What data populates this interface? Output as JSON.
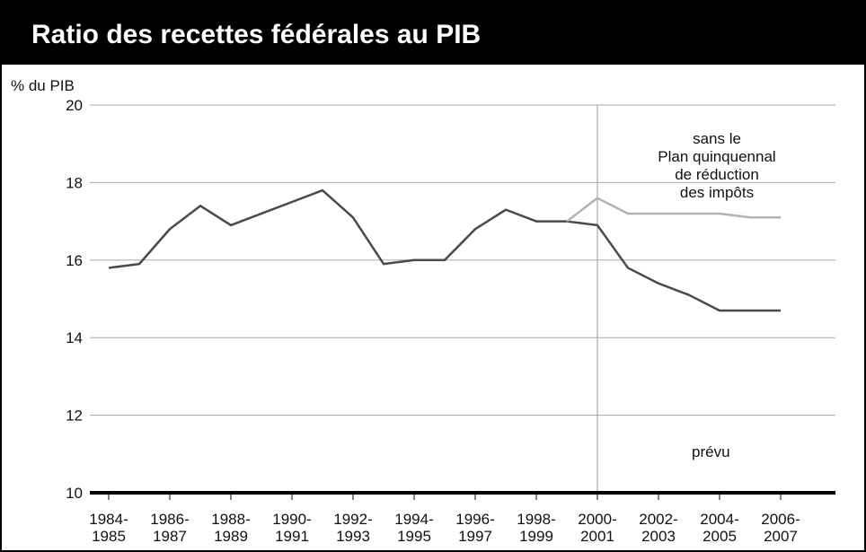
{
  "chart_data": {
    "type": "line",
    "title": "Ratio des recettes fédérales au PIB",
    "y_label": "% du PIB",
    "categories": [
      "1984-\n1985",
      null,
      "1986-\n1987",
      null,
      "1988-\n1989",
      null,
      "1990-\n1991",
      null,
      "1992-\n1993",
      null,
      "1994-\n1995",
      null,
      "1996-\n1997",
      null,
      "1998-\n1999",
      null,
      "2000-\n2001",
      null,
      "2002-\n2003",
      null,
      "2004-\n2005",
      null,
      "2006-\n2007"
    ],
    "series": [
      {
        "color": "#4a4a4a",
        "values": [
          15.8,
          15.9,
          16.8,
          17.4,
          16.9,
          17.2,
          17.5,
          17.8,
          17.1,
          15.9,
          16.0,
          16.0,
          16.8,
          17.3,
          17.0,
          17.0,
          16.9,
          15.8,
          15.4,
          15.1,
          14.7,
          14.7,
          14.7
        ]
      },
      {
        "name": "sans le\nPlan quinquennal\nde réduction\ndes impôts",
        "color": "#b3b3b3",
        "values": [
          null,
          null,
          null,
          null,
          null,
          null,
          null,
          null,
          null,
          null,
          null,
          null,
          null,
          null,
          null,
          17.0,
          17.6,
          17.2,
          17.2,
          17.2,
          17.2,
          17.1,
          17.1
        ]
      }
    ],
    "annotation": {
      "text": "prévu",
      "x": "2000-\n2001"
    },
    "ylim": [
      10,
      20
    ],
    "yticks": [
      10,
      12,
      14,
      16,
      18,
      20
    ],
    "grid": true
  }
}
